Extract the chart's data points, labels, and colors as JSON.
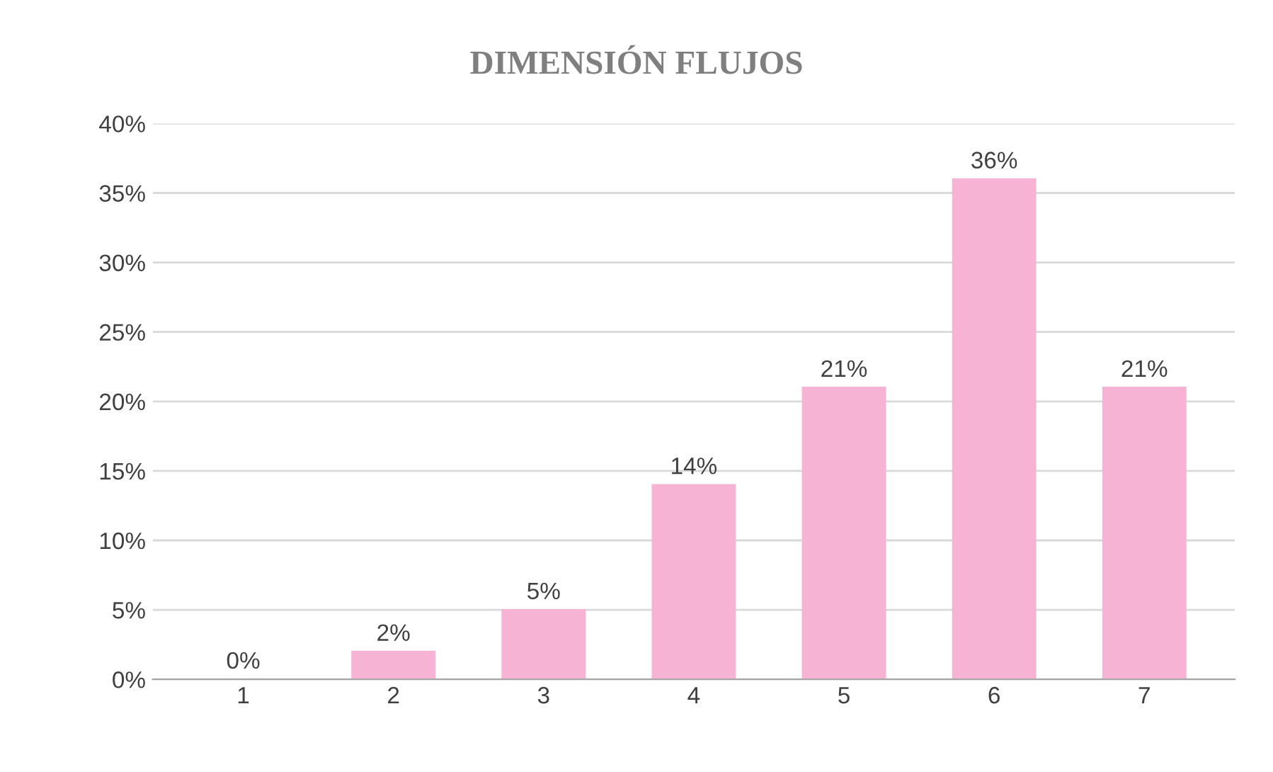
{
  "chart_data": {
    "type": "bar",
    "title": "DIMENSIÓN FLUJOS",
    "categories": [
      "1",
      "2",
      "3",
      "4",
      "5",
      "6",
      "7"
    ],
    "values": [
      0,
      2,
      5,
      14,
      21,
      36,
      21
    ],
    "value_labels": [
      "0%",
      "2%",
      "5%",
      "14%",
      "21%",
      "36%",
      "21%"
    ],
    "color": "#f7b3d4",
    "ylim": [
      0,
      40
    ],
    "yticks": [
      {
        "value": 0,
        "label": "0%"
      },
      {
        "value": 5,
        "label": "5%"
      },
      {
        "value": 10,
        "label": "10%"
      },
      {
        "value": 15,
        "label": "15%"
      },
      {
        "value": 20,
        "label": "20%"
      },
      {
        "value": 25,
        "label": "25%"
      },
      {
        "value": 30,
        "label": "30%"
      },
      {
        "value": 35,
        "label": "35%"
      },
      {
        "value": 40,
        "label": "40%"
      }
    ],
    "grid": "y",
    "legend": false
  }
}
